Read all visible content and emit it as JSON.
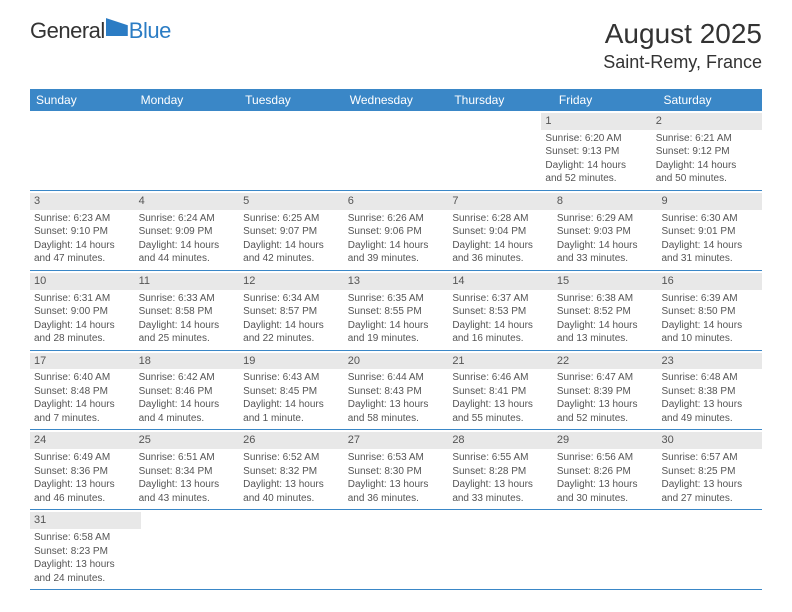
{
  "logo": {
    "part1": "General",
    "part2": "Blue"
  },
  "title": "August 2025",
  "location": "Saint-Remy, France",
  "day_headers": [
    "Sunday",
    "Monday",
    "Tuesday",
    "Wednesday",
    "Thursday",
    "Friday",
    "Saturday"
  ],
  "headers_bg": "#3a87c7",
  "headers_fg": "#ffffff",
  "daynum_bg": "#e8e8e8",
  "weeks": [
    [
      null,
      null,
      null,
      null,
      null,
      {
        "n": "1",
        "sr": "Sunrise: 6:20 AM",
        "ss": "Sunset: 9:13 PM",
        "d1": "Daylight: 14 hours",
        "d2": "and 52 minutes."
      },
      {
        "n": "2",
        "sr": "Sunrise: 6:21 AM",
        "ss": "Sunset: 9:12 PM",
        "d1": "Daylight: 14 hours",
        "d2": "and 50 minutes."
      }
    ],
    [
      {
        "n": "3",
        "sr": "Sunrise: 6:23 AM",
        "ss": "Sunset: 9:10 PM",
        "d1": "Daylight: 14 hours",
        "d2": "and 47 minutes."
      },
      {
        "n": "4",
        "sr": "Sunrise: 6:24 AM",
        "ss": "Sunset: 9:09 PM",
        "d1": "Daylight: 14 hours",
        "d2": "and 44 minutes."
      },
      {
        "n": "5",
        "sr": "Sunrise: 6:25 AM",
        "ss": "Sunset: 9:07 PM",
        "d1": "Daylight: 14 hours",
        "d2": "and 42 minutes."
      },
      {
        "n": "6",
        "sr": "Sunrise: 6:26 AM",
        "ss": "Sunset: 9:06 PM",
        "d1": "Daylight: 14 hours",
        "d2": "and 39 minutes."
      },
      {
        "n": "7",
        "sr": "Sunrise: 6:28 AM",
        "ss": "Sunset: 9:04 PM",
        "d1": "Daylight: 14 hours",
        "d2": "and 36 minutes."
      },
      {
        "n": "8",
        "sr": "Sunrise: 6:29 AM",
        "ss": "Sunset: 9:03 PM",
        "d1": "Daylight: 14 hours",
        "d2": "and 33 minutes."
      },
      {
        "n": "9",
        "sr": "Sunrise: 6:30 AM",
        "ss": "Sunset: 9:01 PM",
        "d1": "Daylight: 14 hours",
        "d2": "and 31 minutes."
      }
    ],
    [
      {
        "n": "10",
        "sr": "Sunrise: 6:31 AM",
        "ss": "Sunset: 9:00 PM",
        "d1": "Daylight: 14 hours",
        "d2": "and 28 minutes."
      },
      {
        "n": "11",
        "sr": "Sunrise: 6:33 AM",
        "ss": "Sunset: 8:58 PM",
        "d1": "Daylight: 14 hours",
        "d2": "and 25 minutes."
      },
      {
        "n": "12",
        "sr": "Sunrise: 6:34 AM",
        "ss": "Sunset: 8:57 PM",
        "d1": "Daylight: 14 hours",
        "d2": "and 22 minutes."
      },
      {
        "n": "13",
        "sr": "Sunrise: 6:35 AM",
        "ss": "Sunset: 8:55 PM",
        "d1": "Daylight: 14 hours",
        "d2": "and 19 minutes."
      },
      {
        "n": "14",
        "sr": "Sunrise: 6:37 AM",
        "ss": "Sunset: 8:53 PM",
        "d1": "Daylight: 14 hours",
        "d2": "and 16 minutes."
      },
      {
        "n": "15",
        "sr": "Sunrise: 6:38 AM",
        "ss": "Sunset: 8:52 PM",
        "d1": "Daylight: 14 hours",
        "d2": "and 13 minutes."
      },
      {
        "n": "16",
        "sr": "Sunrise: 6:39 AM",
        "ss": "Sunset: 8:50 PM",
        "d1": "Daylight: 14 hours",
        "d2": "and 10 minutes."
      }
    ],
    [
      {
        "n": "17",
        "sr": "Sunrise: 6:40 AM",
        "ss": "Sunset: 8:48 PM",
        "d1": "Daylight: 14 hours",
        "d2": "and 7 minutes."
      },
      {
        "n": "18",
        "sr": "Sunrise: 6:42 AM",
        "ss": "Sunset: 8:46 PM",
        "d1": "Daylight: 14 hours",
        "d2": "and 4 minutes."
      },
      {
        "n": "19",
        "sr": "Sunrise: 6:43 AM",
        "ss": "Sunset: 8:45 PM",
        "d1": "Daylight: 14 hours",
        "d2": "and 1 minute."
      },
      {
        "n": "20",
        "sr": "Sunrise: 6:44 AM",
        "ss": "Sunset: 8:43 PM",
        "d1": "Daylight: 13 hours",
        "d2": "and 58 minutes."
      },
      {
        "n": "21",
        "sr": "Sunrise: 6:46 AM",
        "ss": "Sunset: 8:41 PM",
        "d1": "Daylight: 13 hours",
        "d2": "and 55 minutes."
      },
      {
        "n": "22",
        "sr": "Sunrise: 6:47 AM",
        "ss": "Sunset: 8:39 PM",
        "d1": "Daylight: 13 hours",
        "d2": "and 52 minutes."
      },
      {
        "n": "23",
        "sr": "Sunrise: 6:48 AM",
        "ss": "Sunset: 8:38 PM",
        "d1": "Daylight: 13 hours",
        "d2": "and 49 minutes."
      }
    ],
    [
      {
        "n": "24",
        "sr": "Sunrise: 6:49 AM",
        "ss": "Sunset: 8:36 PM",
        "d1": "Daylight: 13 hours",
        "d2": "and 46 minutes."
      },
      {
        "n": "25",
        "sr": "Sunrise: 6:51 AM",
        "ss": "Sunset: 8:34 PM",
        "d1": "Daylight: 13 hours",
        "d2": "and 43 minutes."
      },
      {
        "n": "26",
        "sr": "Sunrise: 6:52 AM",
        "ss": "Sunset: 8:32 PM",
        "d1": "Daylight: 13 hours",
        "d2": "and 40 minutes."
      },
      {
        "n": "27",
        "sr": "Sunrise: 6:53 AM",
        "ss": "Sunset: 8:30 PM",
        "d1": "Daylight: 13 hours",
        "d2": "and 36 minutes."
      },
      {
        "n": "28",
        "sr": "Sunrise: 6:55 AM",
        "ss": "Sunset: 8:28 PM",
        "d1": "Daylight: 13 hours",
        "d2": "and 33 minutes."
      },
      {
        "n": "29",
        "sr": "Sunrise: 6:56 AM",
        "ss": "Sunset: 8:26 PM",
        "d1": "Daylight: 13 hours",
        "d2": "and 30 minutes."
      },
      {
        "n": "30",
        "sr": "Sunrise: 6:57 AM",
        "ss": "Sunset: 8:25 PM",
        "d1": "Daylight: 13 hours",
        "d2": "and 27 minutes."
      }
    ],
    [
      {
        "n": "31",
        "sr": "Sunrise: 6:58 AM",
        "ss": "Sunset: 8:23 PM",
        "d1": "Daylight: 13 hours",
        "d2": "and 24 minutes."
      },
      null,
      null,
      null,
      null,
      null,
      null
    ]
  ]
}
